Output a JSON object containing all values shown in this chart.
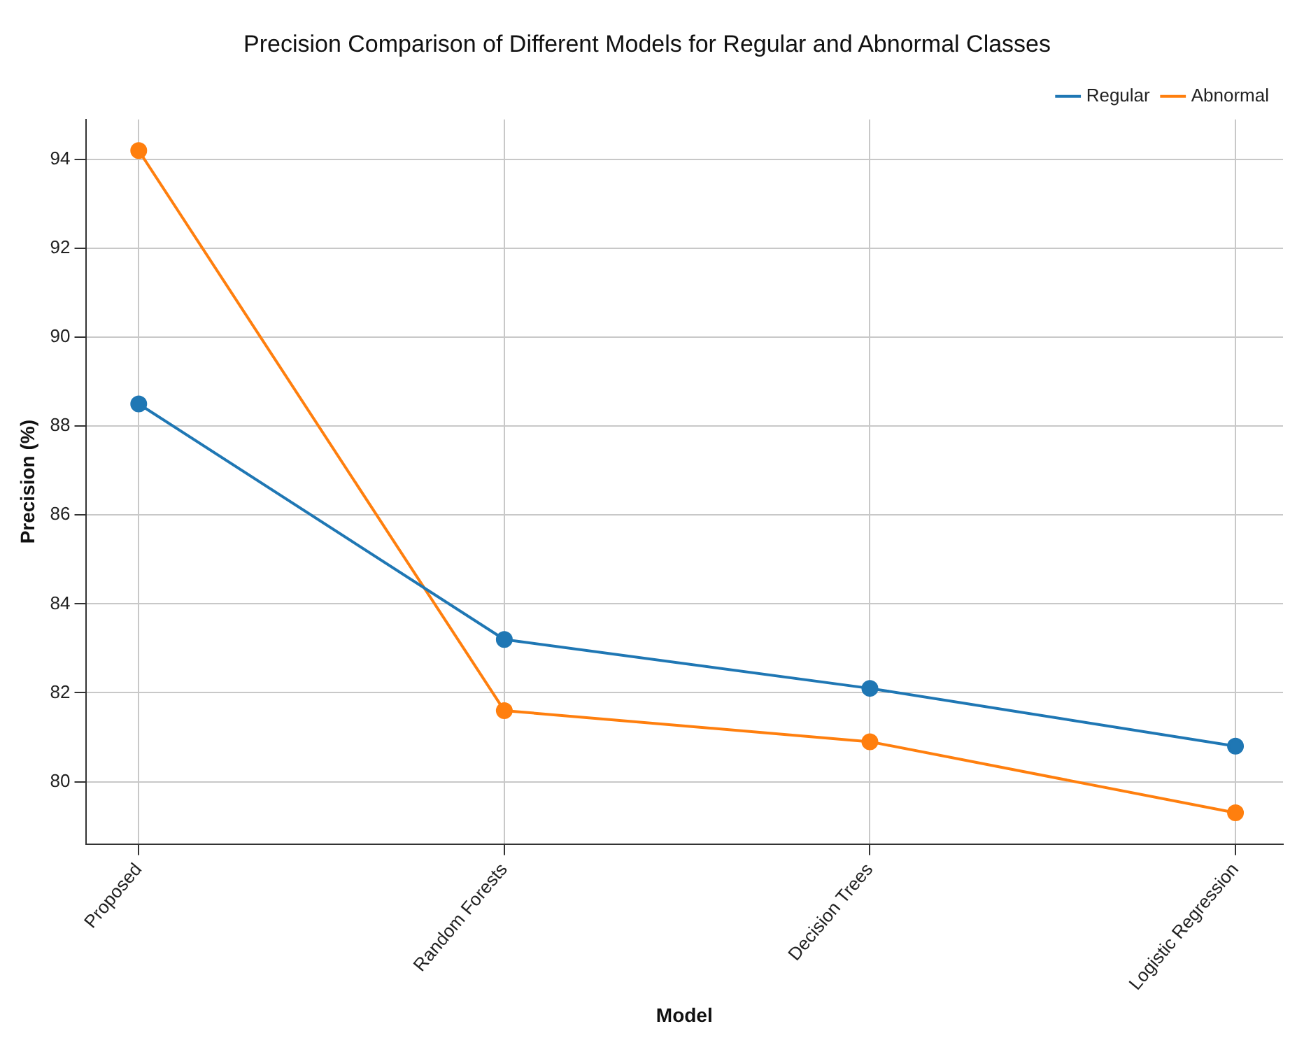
{
  "chart_data": {
    "type": "line",
    "title": "Precision Comparison of Different Models for Regular and Abnormal Classes",
    "xlabel": "Model",
    "ylabel": "Precision (%)",
    "categories": [
      "Proposed",
      "Random Forests",
      "Decision Trees",
      "Logistic Regression"
    ],
    "series": [
      {
        "name": "Regular",
        "color": "#1f77b4",
        "values": [
          88.5,
          83.2,
          82.1,
          80.8
        ]
      },
      {
        "name": "Abnormal",
        "color": "#ff7f0e",
        "values": [
          94.2,
          81.6,
          80.9,
          79.3
        ]
      }
    ],
    "ylim": [
      78.6,
      94.9
    ],
    "yticks": [
      80,
      82,
      84,
      86,
      88,
      90,
      92,
      94
    ],
    "grid": true,
    "legend": "top right",
    "marker": "circle",
    "line_style": "solid"
  }
}
